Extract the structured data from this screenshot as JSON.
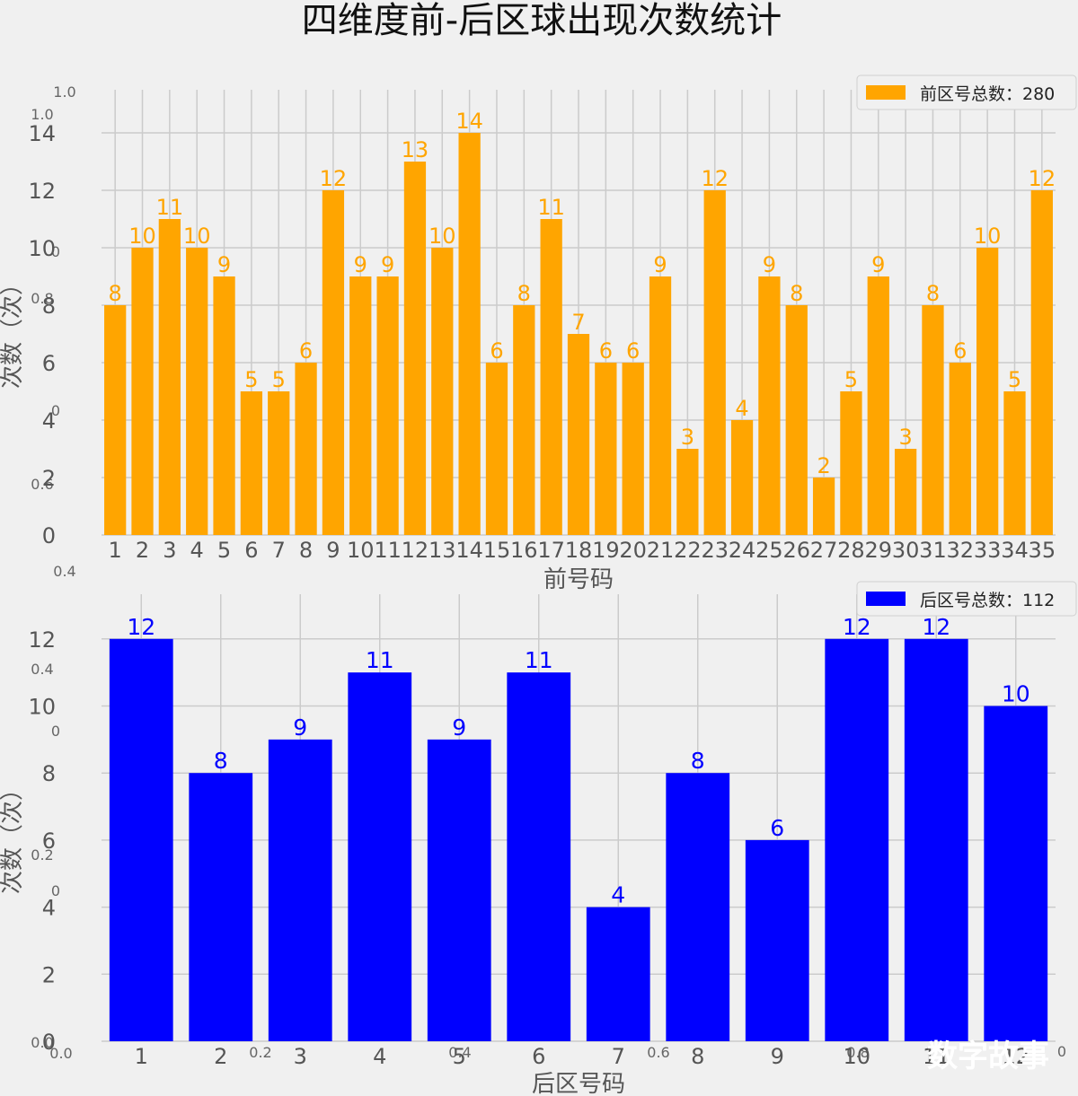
{
  "page": {
    "title": "四维度前-后区球出现次数统计",
    "watermark": "数字故事",
    "ghost_ticks": [
      "1.0",
      "1.0",
      "0",
      "0.8",
      "0",
      "0.6",
      "0.4",
      "0.4",
      "0",
      "0.2",
      "0",
      "0.0",
      "0.0",
      "0.2",
      "0.4",
      "0.6",
      "0.8",
      "0"
    ]
  },
  "chart_data": [
    {
      "type": "bar",
      "categories": [
        "1",
        "2",
        "3",
        "4",
        "5",
        "6",
        "7",
        "8",
        "9",
        "10",
        "11",
        "12",
        "13",
        "14",
        "15",
        "16",
        "17",
        "18",
        "19",
        "20",
        "21",
        "22",
        "23",
        "24",
        "25",
        "26",
        "27",
        "28",
        "29",
        "30",
        "31",
        "32",
        "33",
        "34",
        "35"
      ],
      "values": [
        8,
        10,
        11,
        10,
        9,
        5,
        5,
        6,
        12,
        9,
        9,
        13,
        10,
        14,
        6,
        8,
        11,
        7,
        6,
        6,
        9,
        3,
        12,
        4,
        9,
        8,
        2,
        5,
        9,
        3,
        8,
        6,
        10,
        5,
        12
      ],
      "color": "#ffa500",
      "xlabel": "前号码",
      "ylabel": "次数（次）",
      "yticks": [
        0,
        2,
        4,
        6,
        8,
        10,
        12,
        14
      ],
      "ylim": [
        0,
        14.7
      ],
      "legend": "前区号总数：280",
      "legend_position": "top-right",
      "grid": true
    },
    {
      "type": "bar",
      "categories": [
        "1",
        "2",
        "3",
        "4",
        "5",
        "6",
        "7",
        "8",
        "9",
        "10",
        "11",
        "12"
      ],
      "values": [
        12,
        8,
        9,
        11,
        9,
        11,
        4,
        8,
        6,
        12,
        12,
        10
      ],
      "color": "#0000ff",
      "xlabel": "后区号码",
      "ylabel": "次数（次）",
      "yticks": [
        0,
        2,
        4,
        6,
        8,
        10,
        12
      ],
      "ylim": [
        0,
        12.6
      ],
      "legend": "后区号总数：112",
      "legend_position": "top-right",
      "grid": true
    }
  ]
}
